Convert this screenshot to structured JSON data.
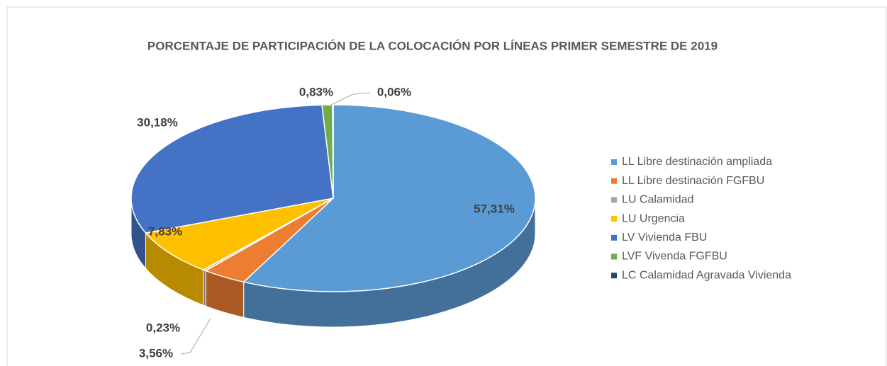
{
  "chart_data": {
    "type": "pie",
    "title": "PORCENTAJE DE PARTICIPACIÓN DE LA COLOCACIÓN POR LÍNEAS PRIMER SEMESTRE DE 2019",
    "categories": [
      "LL Libre destinación ampliada",
      "LL Libre destinación FGFBU",
      "LU  Calamidad",
      "LU  Urgencia",
      "LV Vivienda FBU",
      "LVF Vivenda FGFBU",
      "LC Calamidad Agravada Vivienda"
    ],
    "values": [
      57.31,
      3.56,
      0.23,
      7.83,
      30.18,
      0.83,
      0.06
    ],
    "value_labels": [
      "57,31%",
      "3,56%",
      "0,23%",
      "7,83%",
      "30,18%",
      "0,83%",
      "0,06%"
    ],
    "colors": [
      "#5b9bd5",
      "#ed7d31",
      "#a5a5a5",
      "#ffc000",
      "#4472c4",
      "#70ad47",
      "#264478"
    ],
    "legend": "right"
  }
}
